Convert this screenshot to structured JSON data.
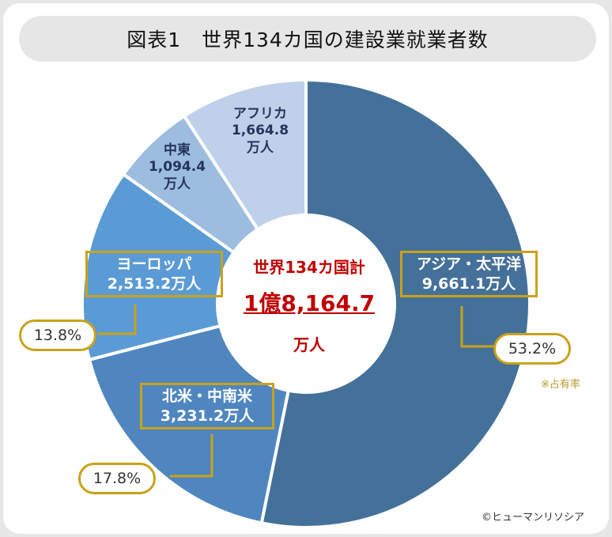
{
  "title": "図表1　世界134カ国の建設業就業者数",
  "chart_data": {
    "type": "pie",
    "variant": "donut",
    "title": "図表1　世界134カ国の建設業就業者数",
    "unit": "万人",
    "categories": [
      "アジア・太平洋",
      "北米・中南米",
      "ヨーロッパ",
      "中東",
      "アフリカ"
    ],
    "values": [
      9661.1,
      3231.2,
      2513.2,
      1094.4,
      1664.8
    ],
    "value_labels": [
      "9,661.1万人",
      "3,231.2万人",
      "2,513.2万人",
      "1,094.4",
      "1,664.8"
    ],
    "unit_labels": [
      "万人",
      "万人"
    ],
    "percent_labels": [
      "53.2%",
      "17.8%",
      "13.8%"
    ],
    "colors": [
      "#44719a",
      "#4f86bf",
      "#5b9bd5",
      "#9dbde0",
      "#bfd1ea"
    ],
    "center": {
      "line1": "世界134カ国計",
      "line2": "1億8,164.7",
      "line3": "万人"
    },
    "note": "※占有率",
    "credit": "©ヒューマンリソシア"
  }
}
